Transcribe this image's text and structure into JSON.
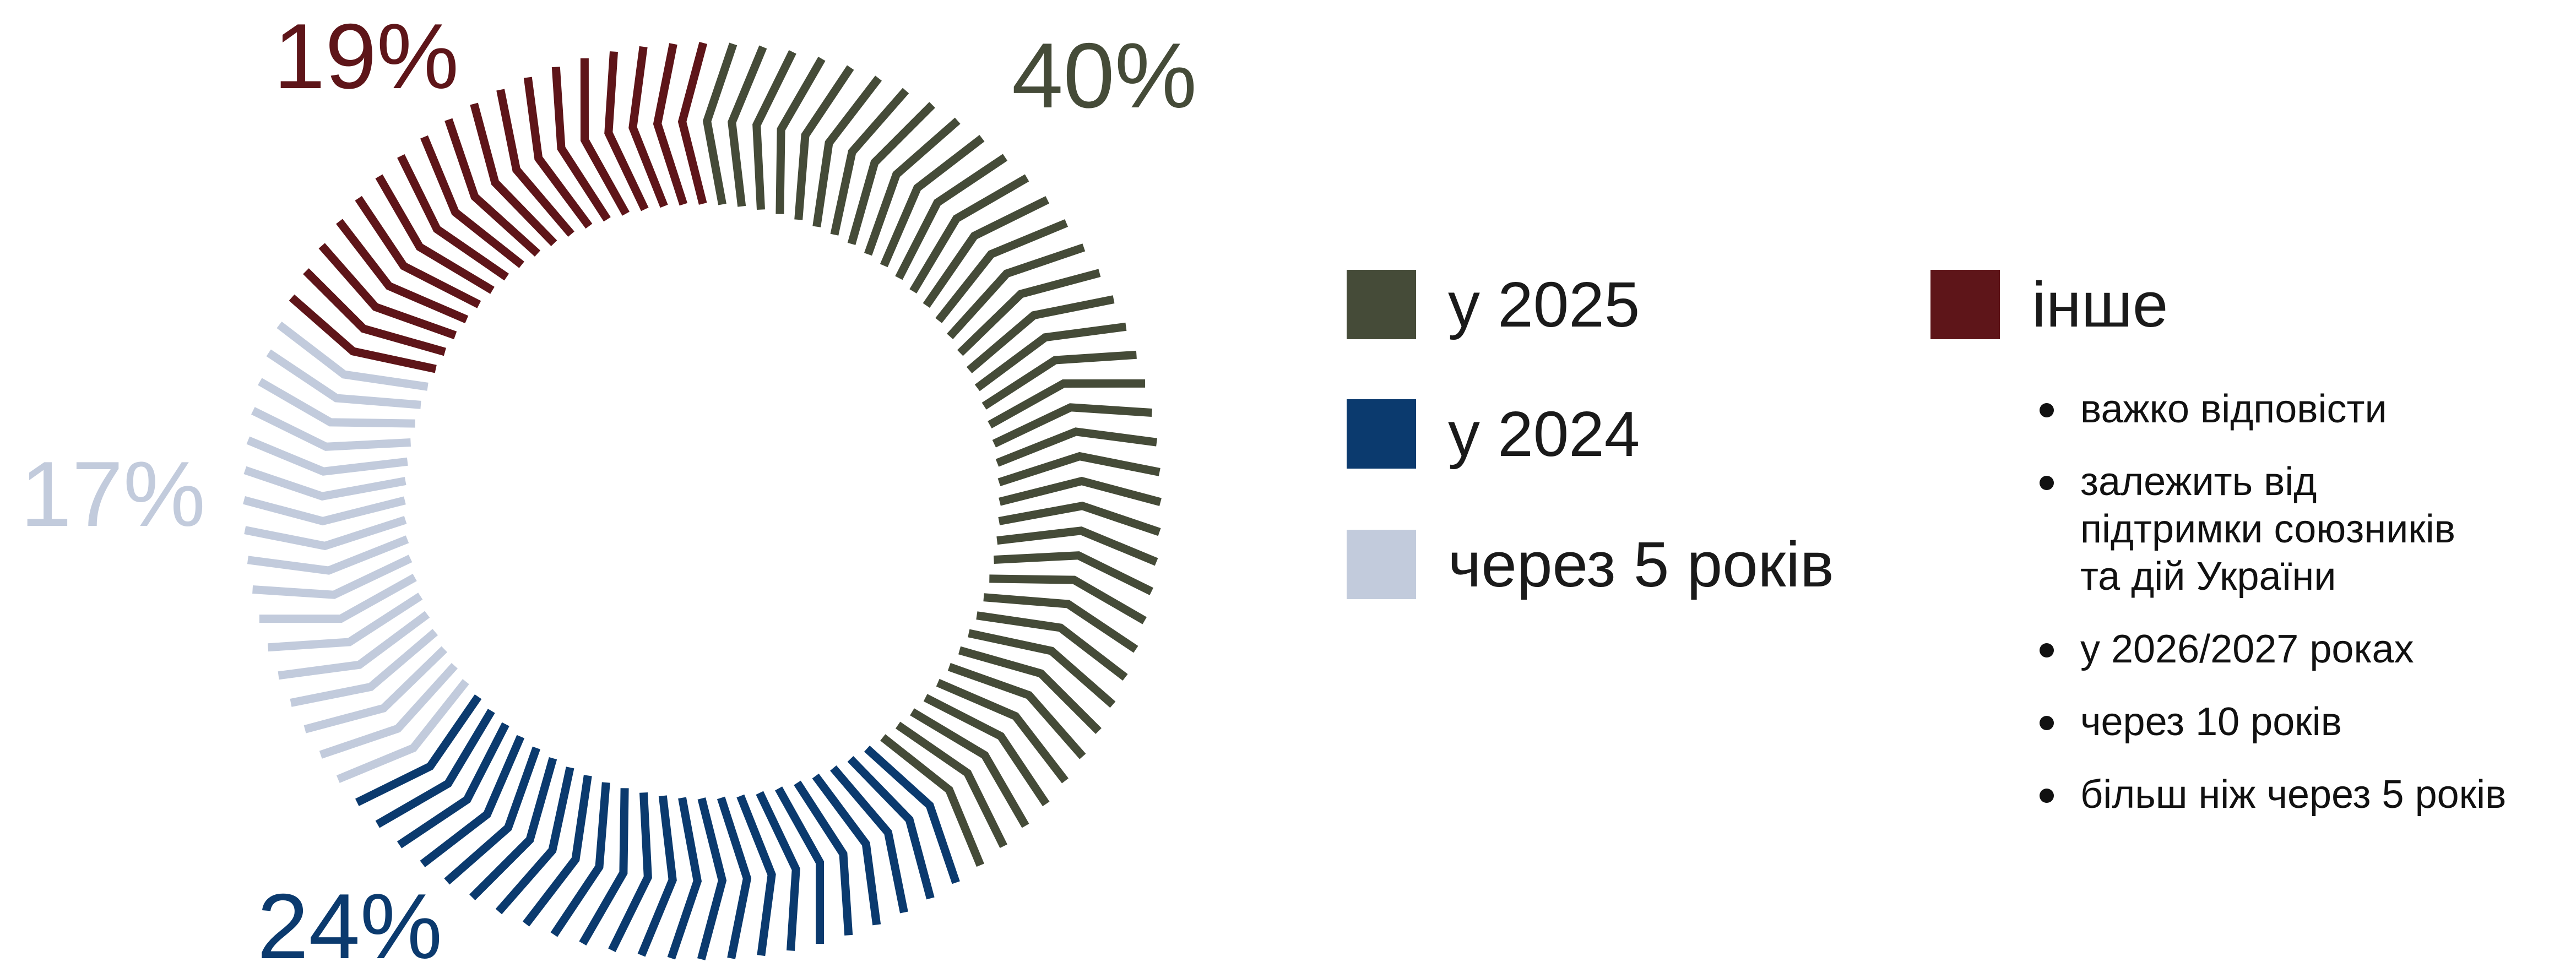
{
  "chart_data": {
    "type": "pie",
    "style": "donut of radial tick strokes",
    "title": "",
    "slices": [
      {
        "label": "у 2025",
        "value": 40,
        "value_label": "40%",
        "color": "#454b38"
      },
      {
        "label": "у 2024",
        "value": 24,
        "value_label": "24%",
        "color": "#0b3a6e"
      },
      {
        "label": "через 5 років",
        "value": 17,
        "value_label": "17%",
        "color": "#c2cbdc"
      },
      {
        "label": "інше",
        "value": 19,
        "value_label": "19%",
        "color": "#5e1519"
      }
    ],
    "legend_placement": "right",
    "other_breakdown": [
      "важко відповісти",
      "залежить від підтримки союзників та дій України",
      "у 2026/2027 роках",
      "через 10 років",
      "більш ніж через 5 років"
    ]
  },
  "legend": {
    "items": [
      {
        "label": "у 2025",
        "color": "#454b38"
      },
      {
        "label": "у 2024",
        "color": "#0b3a6e"
      },
      {
        "label": "через 5 років",
        "color": "#c2cbdc"
      },
      {
        "label": "інше",
        "color": "#5e1519"
      }
    ]
  },
  "other_list": {
    "item_1": "важко відповісти",
    "item_2_line1": "залежить від",
    "item_2_line2": "підтримки союзників",
    "item_2_line3": "та дій України",
    "item_3": "у 2026/2027 роках",
    "item_4": "через 10 років",
    "item_5": "більш ніж через 5 років"
  }
}
